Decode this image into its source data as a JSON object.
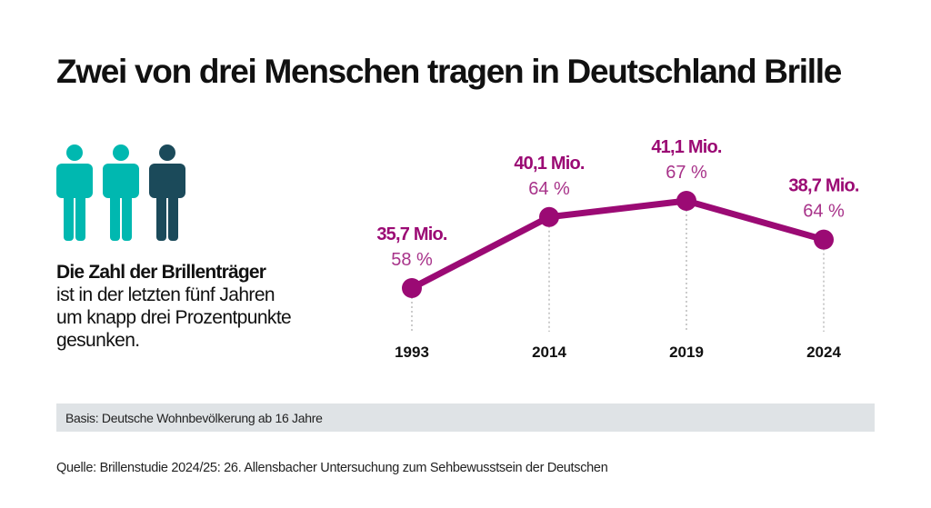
{
  "title": "Zwei von drei Menschen tragen in Deutschland Brille",
  "icons": {
    "people": [
      "person-icon",
      "person-icon",
      "person-icon"
    ],
    "colors": [
      "#00b8b0",
      "#00b8b0",
      "#1b4a5a"
    ]
  },
  "lead": {
    "bold": "Die Zahl der Brillenträger",
    "lines": [
      "ist in der letzten fünf Jahren",
      "um knapp drei Prozentpunkte",
      "gesunken."
    ]
  },
  "basis": "Basis: Deutsche Wohnbevölkerung ab 16 Jahre",
  "source": "Quelle:  Brillenstudie 2024/25: 26. Allensbacher Untersuchung zum Sehbewusstsein der Deutschen",
  "chart_data": {
    "type": "line",
    "categories": [
      "1993",
      "2014",
      "2019",
      "2024"
    ],
    "values": [
      35.7,
      40.1,
      41.1,
      38.7
    ],
    "value_labels": [
      "35,7 Mio.",
      "40,1 Mio.",
      "41,1 Mio.",
      "38,7 Mio."
    ],
    "percent_labels": [
      "58 %",
      "64 %",
      "67 %",
      "64 %"
    ],
    "unit": "Mio.",
    "ylim": [
      30,
      45
    ],
    "grid": false,
    "color": "#9b0a74"
  }
}
